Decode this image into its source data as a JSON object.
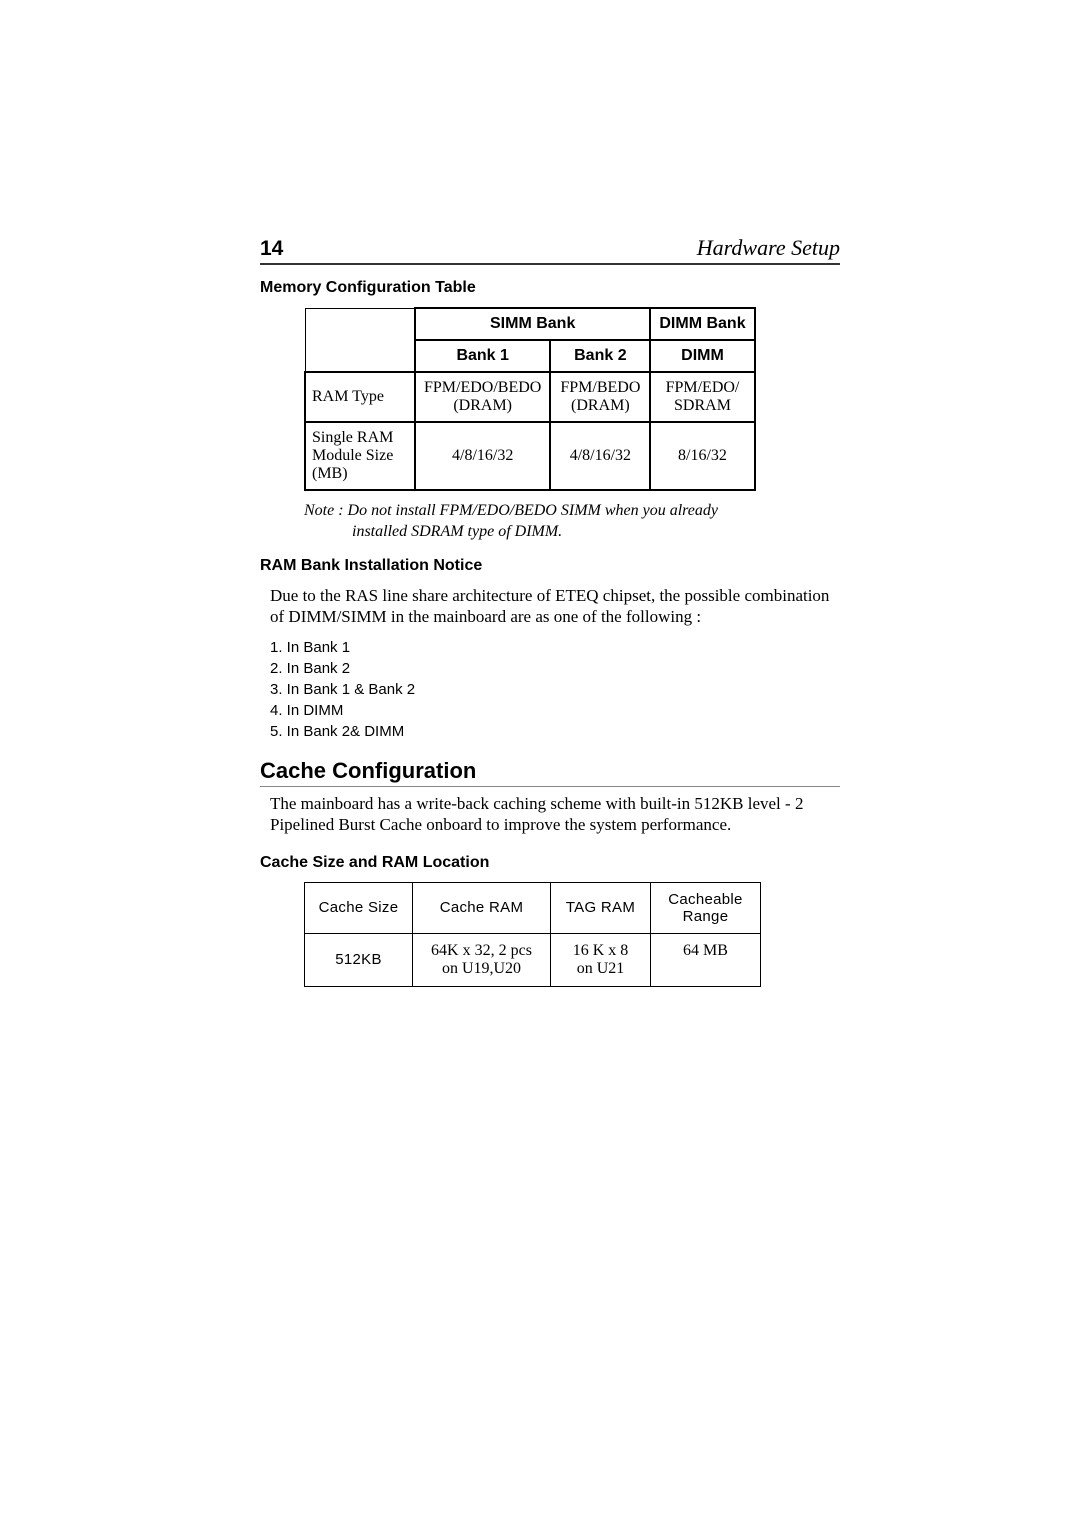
{
  "page": {
    "number": "14",
    "chapter": "Hardware Setup"
  },
  "mem_config": {
    "heading": "Memory Configuration Table",
    "group_simm": "SIMM Bank",
    "group_dimm": "DIMM Bank",
    "col_bank1": "Bank 1",
    "col_bank2": "Bank 2",
    "col_dimm": "DIMM",
    "rows": [
      {
        "label": "RAM Type",
        "bank1": "FPM/EDO/BEDO (DRAM)",
        "bank2": "FPM/BEDO (DRAM)",
        "dimm": "FPM/EDO/ SDRAM"
      },
      {
        "label": "Single RAM Module Size (MB)",
        "bank1": "4/8/16/32",
        "bank2": "4/8/16/32",
        "dimm": "8/16/32"
      }
    ],
    "note_line1": "Note : Do not install FPM/EDO/BEDO SIMM when you already",
    "note_line2": "installed SDRAM type of DIMM."
  },
  "ram_notice": {
    "heading": "RAM Bank Installation Notice",
    "body": "Due to the RAS line share architecture of ETEQ chipset, the possible combination of DIMM/SIMM in the mainboard are as one of the  following :",
    "items": [
      "1. In Bank 1",
      "2. In Bank 2",
      "3. In Bank 1 & Bank 2",
      "4. In DIMM",
      "5. In Bank 2& DIMM"
    ]
  },
  "cache": {
    "heading": "Cache Configuration",
    "body": "The mainboard has a write-back caching scheme with built-in 512KB level - 2  Pipelined Burst Cache onboard to improve the system performance."
  },
  "cache_table": {
    "heading": "Cache Size and RAM Location",
    "col_a": "Cache Size",
    "col_b": "Cache RAM",
    "col_c": "TAG RAM",
    "col_d": "Cacheable Range",
    "row": {
      "size": "512KB",
      "ram_l1": "64K x 32, 2 pcs",
      "ram_l2": "on U19,U20",
      "tag_l1": "16 K x 8",
      "tag_l2": "on U21",
      "range": "64 MB"
    }
  }
}
